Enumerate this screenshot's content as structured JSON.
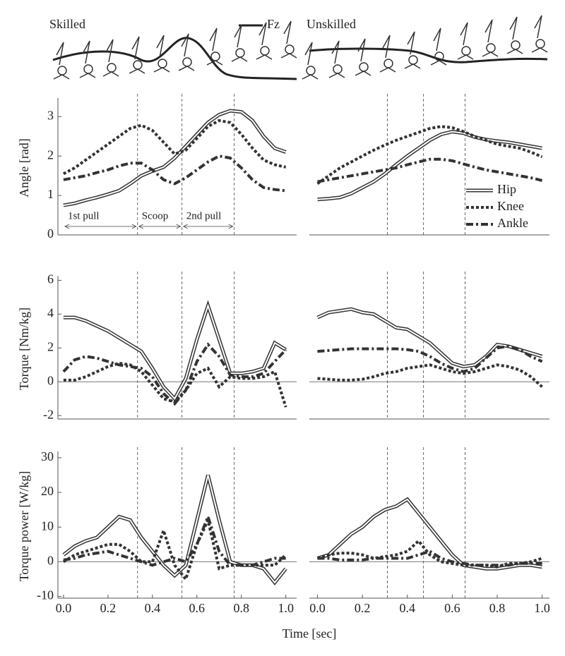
{
  "header": {
    "left_label": "Skilled",
    "right_label": "Unskilled",
    "legend_label": "Fz"
  },
  "figure": {
    "x_label": "Time [sec]"
  },
  "chart_data": [
    {
      "type": "line",
      "y_label": "Angle [rad]",
      "xlim": [
        -0.03,
        1.02
      ],
      "ylim": [
        0,
        3.4
      ],
      "yticks": [
        0,
        1,
        2,
        3
      ],
      "phase_lines": [
        0.333,
        0.533,
        0.768
      ],
      "phase_labels": [
        "1st pull",
        "Scoop",
        "2nd pull"
      ],
      "x": [
        0,
        0.05,
        0.1,
        0.15,
        0.2,
        0.25,
        0.3,
        0.35,
        0.4,
        0.45,
        0.5,
        0.55,
        0.6,
        0.65,
        0.7,
        0.75,
        0.8,
        0.85,
        0.9,
        0.95,
        1
      ],
      "series": [
        {
          "style": "double",
          "color": "#333333",
          "values": [
            0.75,
            0.8,
            0.88,
            0.95,
            1.03,
            1.12,
            1.3,
            1.5,
            1.62,
            1.72,
            1.95,
            2.25,
            2.55,
            2.85,
            3.05,
            3.15,
            3.12,
            2.9,
            2.5,
            2.2,
            2.1
          ]
        },
        {
          "style": "dot",
          "color": "#333333",
          "values": [
            1.55,
            1.7,
            1.9,
            2.1,
            2.3,
            2.5,
            2.7,
            2.78,
            2.65,
            2.35,
            2.05,
            2.15,
            2.45,
            2.75,
            2.9,
            2.85,
            2.55,
            2.2,
            1.9,
            1.78,
            1.72
          ]
        },
        {
          "style": "dashdot",
          "color": "#333333",
          "values": [
            1.4,
            1.45,
            1.5,
            1.58,
            1.65,
            1.75,
            1.82,
            1.82,
            1.65,
            1.4,
            1.3,
            1.45,
            1.65,
            1.85,
            2.0,
            1.95,
            1.7,
            1.4,
            1.2,
            1.15,
            1.12
          ]
        }
      ]
    },
    {
      "type": "line",
      "xlim": [
        -0.03,
        1.02
      ],
      "ylim": [
        0,
        3.4
      ],
      "legend": "lower right",
      "phase_lines": [
        0.311,
        0.472,
        0.657
      ],
      "x": [
        0,
        0.05,
        0.1,
        0.15,
        0.2,
        0.25,
        0.3,
        0.35,
        0.4,
        0.45,
        0.5,
        0.55,
        0.6,
        0.65,
        0.7,
        0.75,
        0.8,
        0.85,
        0.9,
        0.95,
        1
      ],
      "series": [
        {
          "name": "Hip",
          "style": "double",
          "color": "#333333",
          "values": [
            0.9,
            0.92,
            0.95,
            1.05,
            1.2,
            1.35,
            1.55,
            1.78,
            2.0,
            2.2,
            2.4,
            2.55,
            2.62,
            2.58,
            2.48,
            2.42,
            2.38,
            2.35,
            2.3,
            2.25,
            2.2
          ]
        },
        {
          "name": "Knee",
          "style": "dot",
          "color": "#333333",
          "values": [
            1.3,
            1.5,
            1.7,
            1.85,
            2.0,
            2.15,
            2.28,
            2.4,
            2.5,
            2.6,
            2.7,
            2.75,
            2.72,
            2.62,
            2.5,
            2.4,
            2.3,
            2.25,
            2.2,
            2.1,
            1.98
          ]
        },
        {
          "name": "Ankle",
          "style": "dashdot",
          "color": "#333333",
          "values": [
            1.35,
            1.4,
            1.45,
            1.5,
            1.55,
            1.6,
            1.65,
            1.7,
            1.78,
            1.85,
            1.92,
            1.92,
            1.88,
            1.8,
            1.72,
            1.65,
            1.6,
            1.55,
            1.5,
            1.45,
            1.38
          ]
        }
      ]
    },
    {
      "type": "line",
      "y_label": "Torque [Nm/kg]",
      "xlim": [
        -0.03,
        1.02
      ],
      "ylim": [
        -2.2,
        6.1
      ],
      "yticks": [
        -2,
        0,
        2,
        4,
        6
      ],
      "zero_line": true,
      "phase_lines": [
        0.333,
        0.533,
        0.768
      ],
      "x": [
        0,
        0.05,
        0.1,
        0.15,
        0.2,
        0.25,
        0.3,
        0.35,
        0.4,
        0.45,
        0.5,
        0.55,
        0.6,
        0.65,
        0.7,
        0.75,
        0.8,
        0.85,
        0.9,
        0.95,
        1
      ],
      "series": [
        {
          "style": "double",
          "color": "#333333",
          "values": [
            3.8,
            3.8,
            3.6,
            3.3,
            3.0,
            2.6,
            2.2,
            1.8,
            0.8,
            -0.3,
            -1.0,
            0.2,
            2.5,
            4.5,
            2.5,
            0.5,
            0.5,
            0.6,
            0.8,
            2.3,
            1.9
          ]
        },
        {
          "style": "dot",
          "color": "#333333",
          "values": [
            0.1,
            0.1,
            0.3,
            0.6,
            0.9,
            1.1,
            1.0,
            0.6,
            -0.2,
            -1.0,
            -1.2,
            -0.5,
            0.5,
            0.8,
            -0.3,
            0.3,
            0.2,
            0.2,
            0.3,
            0.6,
            -1.5
          ]
        },
        {
          "style": "dashdot",
          "color": "#333333",
          "values": [
            0.6,
            1.3,
            1.5,
            1.4,
            1.2,
            1.0,
            0.9,
            0.8,
            0.3,
            -0.7,
            -1.3,
            -0.5,
            1.2,
            2.2,
            1.5,
            0.4,
            0.3,
            0.3,
            0.5,
            1.2,
            1.9
          ]
        }
      ]
    },
    {
      "type": "line",
      "xlim": [
        -0.03,
        1.02
      ],
      "ylim": [
        -2.2,
        6.1
      ],
      "zero_line": true,
      "phase_lines": [
        0.311,
        0.472,
        0.657
      ],
      "x": [
        0,
        0.05,
        0.1,
        0.15,
        0.2,
        0.25,
        0.3,
        0.35,
        0.4,
        0.45,
        0.5,
        0.55,
        0.6,
        0.65,
        0.7,
        0.75,
        0.8,
        0.85,
        0.9,
        0.95,
        1
      ],
      "series": [
        {
          "style": "double",
          "color": "#333333",
          "values": [
            3.8,
            4.1,
            4.2,
            4.3,
            4.1,
            4.0,
            3.6,
            3.2,
            3.1,
            2.7,
            2.3,
            1.7,
            1.1,
            0.9,
            1.0,
            1.5,
            2.2,
            2.1,
            1.9,
            1.7,
            1.5
          ]
        },
        {
          "style": "dot",
          "color": "#333333",
          "values": [
            0.2,
            0.15,
            0.1,
            0.1,
            0.15,
            0.3,
            0.5,
            0.6,
            0.8,
            0.9,
            1.0,
            0.8,
            0.6,
            0.5,
            0.6,
            0.8,
            1.0,
            0.9,
            0.7,
            0.3,
            -0.3
          ]
        },
        {
          "style": "dashdot",
          "color": "#333333",
          "values": [
            1.8,
            1.85,
            1.9,
            1.95,
            1.95,
            1.95,
            1.95,
            1.95,
            1.9,
            1.8,
            1.5,
            1.1,
            0.8,
            0.6,
            0.8,
            1.4,
            2.0,
            2.1,
            1.9,
            1.5,
            1.2
          ]
        }
      ]
    },
    {
      "type": "line",
      "y_label": "Torque power [W/kg]",
      "xlim": [
        -0.03,
        1.02
      ],
      "ylim": [
        -10.5,
        31
      ],
      "yticks": [
        -10,
        0,
        10,
        20,
        30
      ],
      "zero_line": true,
      "xticks": [
        {
          "value": 0,
          "label": "0.0"
        },
        0.2,
        0.4,
        0.6,
        0.8,
        {
          "value": 1,
          "label": "1.0"
        }
      ],
      "phase_lines": [
        0.333,
        0.533,
        0.768
      ],
      "x": [
        0,
        0.05,
        0.1,
        0.15,
        0.2,
        0.25,
        0.3,
        0.35,
        0.4,
        0.45,
        0.5,
        0.55,
        0.6,
        0.65,
        0.7,
        0.75,
        0.8,
        0.85,
        0.9,
        0.95,
        1
      ],
      "series": [
        {
          "style": "double",
          "color": "#333333",
          "values": [
            2,
            4.5,
            6,
            7,
            10,
            13,
            12,
            7,
            3,
            -1,
            -4,
            -1,
            12,
            25,
            12,
            0,
            -1,
            -1,
            -2,
            -6,
            -2
          ]
        },
        {
          "style": "dot",
          "color": "#333333",
          "values": [
            0,
            2,
            3,
            4,
            5,
            5,
            3,
            0,
            0,
            9,
            -1,
            -5,
            5,
            12,
            -2,
            -1,
            -1,
            -1,
            -1,
            -1,
            2
          ]
        },
        {
          "style": "dashdot",
          "color": "#333333",
          "values": [
            0.5,
            1,
            2,
            2.5,
            3,
            2,
            1,
            0,
            -1,
            0,
            1,
            0,
            5,
            13,
            3,
            -1,
            -1,
            -1,
            0,
            1,
            1
          ]
        }
      ]
    },
    {
      "type": "line",
      "xlim": [
        -0.03,
        1.02
      ],
      "ylim": [
        -10.5,
        31
      ],
      "zero_line": true,
      "xticks": [
        {
          "value": 0,
          "label": "0.0"
        },
        0.2,
        0.4,
        0.6,
        0.8,
        {
          "value": 1,
          "label": "1.0"
        }
      ],
      "phase_lines": [
        0.311,
        0.472,
        0.657
      ],
      "x": [
        0,
        0.05,
        0.1,
        0.15,
        0.2,
        0.25,
        0.3,
        0.35,
        0.4,
        0.45,
        0.5,
        0.55,
        0.6,
        0.65,
        0.7,
        0.75,
        0.8,
        0.85,
        0.9,
        0.95,
        1
      ],
      "series": [
        {
          "style": "double",
          "color": "#333333",
          "values": [
            1,
            2,
            5,
            8,
            10,
            13,
            15,
            16,
            18,
            14,
            10,
            6,
            2,
            -1,
            -1.5,
            -2,
            -2,
            -1.5,
            -1,
            -1,
            -1.5
          ]
        },
        {
          "style": "dot",
          "color": "#333333",
          "values": [
            1,
            2,
            2.5,
            2.5,
            2,
            1,
            1.5,
            2,
            3,
            6,
            2,
            0,
            -0.5,
            -1,
            -1,
            -1,
            -1.5,
            -0.5,
            -0.5,
            0,
            1
          ]
        },
        {
          "style": "dashdot",
          "color": "#333333",
          "values": [
            1,
            1,
            0.5,
            0.5,
            0.5,
            1,
            1,
            1,
            1,
            2,
            3,
            1,
            0,
            -0.5,
            -1,
            -1,
            -1,
            -1,
            -0.5,
            -0.5,
            -0.5
          ]
        }
      ]
    }
  ]
}
